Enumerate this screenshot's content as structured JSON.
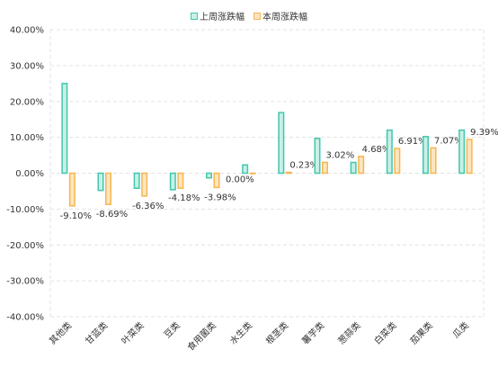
{
  "chart_data": {
    "type": "bar",
    "categories": [
      "其他类",
      "甘蓝类",
      "叶菜类",
      "豆类",
      "食用菌类",
      "水生类",
      "根茎类",
      "薯芋类",
      "葱蒜类",
      "白菜类",
      "茄果类",
      "瓜类"
    ],
    "series": [
      {
        "name": "上周涨跌幅",
        "values": [
          25.0,
          -4.8,
          -4.2,
          -4.6,
          -1.3,
          2.3,
          16.9,
          9.7,
          3.0,
          12.0,
          10.2,
          12.0
        ],
        "color": "#43c6ac",
        "fill": "#c8f0e6",
        "labels": [
          "",
          "",
          "",
          "",
          "",
          "",
          "",
          "",
          "",
          "",
          "",
          ""
        ]
      },
      {
        "name": "本周涨跌幅",
        "values": [
          -9.1,
          -8.69,
          -6.36,
          -4.18,
          -3.98,
          0.0,
          0.23,
          3.02,
          4.68,
          6.91,
          7.07,
          9.39
        ],
        "color": "#f7b551",
        "fill": "#fde6be",
        "labels": [
          "-9.10%",
          "-8.69%",
          "-6.36%",
          "-4.18%",
          "-3.98%",
          "0.00%",
          "0.23%",
          "3.02%",
          "4.68%",
          "6.91%",
          "7.07%",
          "9.39%"
        ]
      }
    ],
    "ylim": [
      -40,
      40
    ],
    "yticks": [
      40,
      30,
      20,
      10,
      0,
      -10,
      -20,
      -30,
      -40
    ],
    "ytick_labels": [
      "40.00%",
      "30.00%",
      "20.00%",
      "10.00%",
      "0.00%",
      "-10.00%",
      "-20.00%",
      "-30.00%",
      "-40.00%"
    ],
    "grid": true,
    "legend_position": "top-center",
    "title": "",
    "xlabel": "",
    "ylabel": ""
  }
}
